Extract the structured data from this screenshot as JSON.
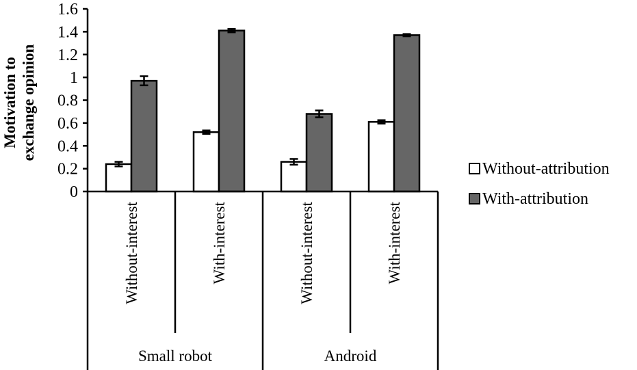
{
  "chart_data": {
    "type": "bar",
    "title": "",
    "xlabel": "",
    "ylabel": "Motivation to exchange opinion",
    "ylabel_lines": [
      "Motivation to",
      "exchange opinion"
    ],
    "ylim": [
      0,
      1.6
    ],
    "yticks": [
      "0",
      "0.2",
      "0.4",
      "0.6",
      "0.8",
      "1",
      "1.2",
      "1.4",
      "1.6"
    ],
    "grid": false,
    "legend_position": "right",
    "groups": [
      {
        "label": "Small robot",
        "categories": [
          "Without-interest",
          "With-interest"
        ]
      },
      {
        "label": "Android",
        "categories": [
          "Without-interest",
          "With-interest"
        ]
      }
    ],
    "categories": [
      "Small robot / Without-interest",
      "Small robot / With-interest",
      "Android / Without-interest",
      "Android / With-interest"
    ],
    "series": [
      {
        "name": "Without-attribution",
        "color": "#ffffff",
        "values": [
          0.24,
          0.52,
          0.26,
          0.61
        ],
        "errors": [
          0.02,
          0.015,
          0.025,
          0.015
        ]
      },
      {
        "name": "With-attribution",
        "color": "#666666",
        "values": [
          0.97,
          1.41,
          0.68,
          1.37
        ],
        "errors": [
          0.04,
          0.015,
          0.03,
          0.01
        ]
      }
    ]
  },
  "legend": {
    "items": [
      {
        "label": "Without-attribution",
        "color": "#ffffff"
      },
      {
        "label": "With-attribution",
        "color": "#666666"
      }
    ]
  }
}
